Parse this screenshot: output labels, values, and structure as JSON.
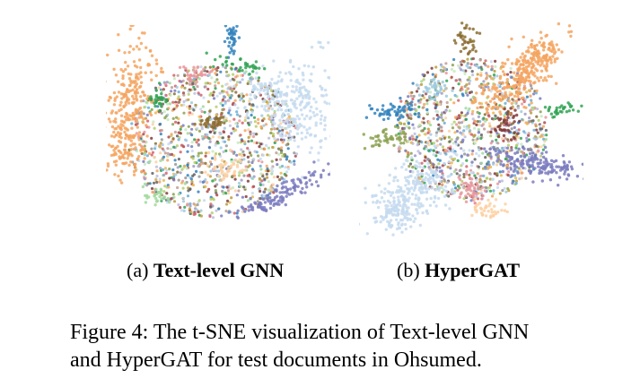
{
  "panels": [
    {
      "id": "a",
      "label": "(a)",
      "name": "Text-level GNN"
    },
    {
      "id": "b",
      "label": "(b)",
      "name": "HyperGAT"
    }
  ],
  "caption": {
    "line1": "Figure 4: The t-SNE visualization of Text-level GNN",
    "line2": "and HyperGAT for test documents in Ohsumed."
  },
  "palette": [
    "#f4a460",
    "#c6dbef",
    "#9ecae1",
    "#3182bd",
    "#6baed6",
    "#31a354",
    "#a1d99b",
    "#c7e9c0",
    "#8c6d31",
    "#bd9e39",
    "#e7ba52",
    "#843c39",
    "#ad494a",
    "#d6616b",
    "#e7969c",
    "#fdd0a2",
    "#7b7bbf",
    "#9e9ac8",
    "#bcbddc",
    "#636363",
    "#969696",
    "#c49c94",
    "#8ca252",
    "#b5cf6b"
  ]
}
